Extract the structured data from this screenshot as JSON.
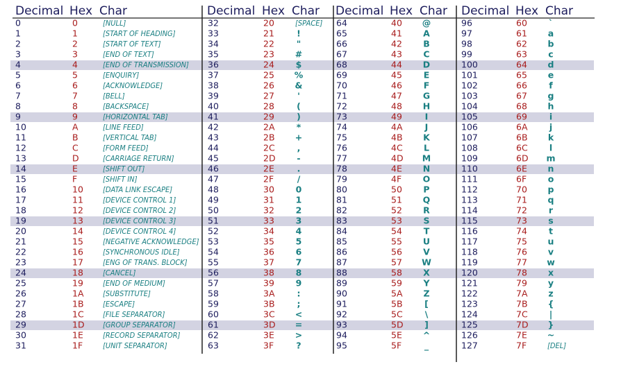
{
  "groups": [
    {
      "headers": [
        "Decimal",
        "Hex",
        "Char"
      ],
      "rows": [
        [
          "0",
          "0",
          "[NULL]"
        ],
        [
          "1",
          "1",
          "[START OF HEADING]"
        ],
        [
          "2",
          "2",
          "[START OF TEXT]"
        ],
        [
          "3",
          "3",
          "[END OF TEXT]"
        ],
        [
          "4",
          "4",
          "[END OF TRANSMISSION]"
        ],
        [
          "5",
          "5",
          "[ENQUIRY]"
        ],
        [
          "6",
          "6",
          "[ACKNOWLEDGE]"
        ],
        [
          "7",
          "7",
          "[BELL]"
        ],
        [
          "8",
          "8",
          "[BACKSPACE]"
        ],
        [
          "9",
          "9",
          "[HORIZONTAL TAB]"
        ],
        [
          "10",
          "A",
          "[LINE FEED]"
        ],
        [
          "11",
          "B",
          "[VERTICAL TAB]"
        ],
        [
          "12",
          "C",
          "[FORM FEED]"
        ],
        [
          "13",
          "D",
          "[CARRIAGE RETURN]"
        ],
        [
          "14",
          "E",
          "[SHIFT OUT]"
        ],
        [
          "15",
          "F",
          "[SHIFT IN]"
        ],
        [
          "16",
          "10",
          "[DATA LINK ESCAPE]"
        ],
        [
          "17",
          "11",
          "[DEVICE CONTROL 1]"
        ],
        [
          "18",
          "12",
          "[DEVICE CONTROL 2]"
        ],
        [
          "19",
          "13",
          "[DEVICE CONTROL 3]"
        ],
        [
          "20",
          "14",
          "[DEVICE CONTROL 4]"
        ],
        [
          "21",
          "15",
          "[NEGATIVE ACKNOWLEDGE]"
        ],
        [
          "22",
          "16",
          "[SYNCHRONOUS IDLE]"
        ],
        [
          "23",
          "17",
          "[ENG OF TRANS. BLOCK]"
        ],
        [
          "24",
          "18",
          "[CANCEL]"
        ],
        [
          "25",
          "19",
          "[END OF MEDIUM]"
        ],
        [
          "26",
          "1A",
          "[SUBSTITUTE]"
        ],
        [
          "27",
          "1B",
          "[ESCAPE]"
        ],
        [
          "28",
          "1C",
          "[FILE SEPARATOR]"
        ],
        [
          "29",
          "1D",
          "[GROUP SEPARATOR]"
        ],
        [
          "30",
          "1E",
          "[RECORD SEPARATOR]"
        ],
        [
          "31",
          "1F",
          "[UNIT SEPARATOR]"
        ]
      ]
    },
    {
      "headers": [
        "Decimal",
        "Hex",
        "Char"
      ],
      "rows": [
        [
          "32",
          "20",
          "[SPACE]"
        ],
        [
          "33",
          "21",
          "!"
        ],
        [
          "34",
          "22",
          "\""
        ],
        [
          "35",
          "23",
          "#"
        ],
        [
          "36",
          "24",
          "$"
        ],
        [
          "37",
          "25",
          "%"
        ],
        [
          "38",
          "26",
          "&"
        ],
        [
          "39",
          "27",
          "'"
        ],
        [
          "40",
          "28",
          "("
        ],
        [
          "41",
          "29",
          ")"
        ],
        [
          "42",
          "2A",
          "*"
        ],
        [
          "43",
          "2B",
          "+"
        ],
        [
          "44",
          "2C",
          ","
        ],
        [
          "45",
          "2D",
          "-"
        ],
        [
          "46",
          "2E",
          "."
        ],
        [
          "47",
          "2F",
          "/"
        ],
        [
          "48",
          "30",
          "0"
        ],
        [
          "49",
          "31",
          "1"
        ],
        [
          "50",
          "32",
          "2"
        ],
        [
          "51",
          "33",
          "3"
        ],
        [
          "52",
          "34",
          "4"
        ],
        [
          "53",
          "35",
          "5"
        ],
        [
          "54",
          "36",
          "6"
        ],
        [
          "55",
          "37",
          "7"
        ],
        [
          "56",
          "38",
          "8"
        ],
        [
          "57",
          "39",
          "9"
        ],
        [
          "58",
          "3A",
          ":"
        ],
        [
          "59",
          "3B",
          ";"
        ],
        [
          "60",
          "3C",
          "<"
        ],
        [
          "61",
          "3D",
          "="
        ],
        [
          "62",
          "3E",
          ">"
        ],
        [
          "63",
          "3F",
          "?"
        ]
      ]
    },
    {
      "headers": [
        "Decimal",
        "Hex",
        "Char"
      ],
      "rows": [
        [
          "64",
          "40",
          "@"
        ],
        [
          "65",
          "41",
          "A"
        ],
        [
          "66",
          "42",
          "B"
        ],
        [
          "67",
          "43",
          "C"
        ],
        [
          "68",
          "44",
          "D"
        ],
        [
          "69",
          "45",
          "E"
        ],
        [
          "70",
          "46",
          "F"
        ],
        [
          "71",
          "47",
          "G"
        ],
        [
          "72",
          "48",
          "H"
        ],
        [
          "73",
          "49",
          "I"
        ],
        [
          "74",
          "4A",
          "J"
        ],
        [
          "75",
          "4B",
          "K"
        ],
        [
          "76",
          "4C",
          "L"
        ],
        [
          "77",
          "4D",
          "M"
        ],
        [
          "78",
          "4E",
          "N"
        ],
        [
          "79",
          "4F",
          "O"
        ],
        [
          "80",
          "50",
          "P"
        ],
        [
          "81",
          "51",
          "Q"
        ],
        [
          "82",
          "52",
          "R"
        ],
        [
          "83",
          "53",
          "S"
        ],
        [
          "84",
          "54",
          "T"
        ],
        [
          "85",
          "55",
          "U"
        ],
        [
          "86",
          "56",
          "V"
        ],
        [
          "87",
          "57",
          "W"
        ],
        [
          "88",
          "58",
          "X"
        ],
        [
          "89",
          "59",
          "Y"
        ],
        [
          "90",
          "5A",
          "Z"
        ],
        [
          "91",
          "5B",
          "["
        ],
        [
          "92",
          "5C",
          "\\"
        ],
        [
          "93",
          "5D",
          "]"
        ],
        [
          "94",
          "5E",
          "^"
        ],
        [
          "95",
          "5F",
          "_"
        ]
      ]
    },
    {
      "headers": [
        "Decimal",
        "Hex",
        "Char"
      ],
      "rows": [
        [
          "96",
          "60",
          "`"
        ],
        [
          "97",
          "61",
          "a"
        ],
        [
          "98",
          "62",
          "b"
        ],
        [
          "99",
          "63",
          "c"
        ],
        [
          "100",
          "64",
          "d"
        ],
        [
          "101",
          "65",
          "e"
        ],
        [
          "102",
          "66",
          "f"
        ],
        [
          "103",
          "67",
          "g"
        ],
        [
          "104",
          "68",
          "h"
        ],
        [
          "105",
          "69",
          "i"
        ],
        [
          "106",
          "6A",
          "j"
        ],
        [
          "107",
          "6B",
          "k"
        ],
        [
          "108",
          "6C",
          "l"
        ],
        [
          "109",
          "6D",
          "m"
        ],
        [
          "110",
          "6E",
          "n"
        ],
        [
          "111",
          "6F",
          "o"
        ],
        [
          "112",
          "70",
          "p"
        ],
        [
          "113",
          "71",
          "q"
        ],
        [
          "114",
          "72",
          "r"
        ],
        [
          "115",
          "73",
          "s"
        ],
        [
          "116",
          "74",
          "t"
        ],
        [
          "117",
          "75",
          "u"
        ],
        [
          "118",
          "76",
          "v"
        ],
        [
          "119",
          "77",
          "w"
        ],
        [
          "120",
          "78",
          "x"
        ],
        [
          "121",
          "79",
          "y"
        ],
        [
          "122",
          "7A",
          "z"
        ],
        [
          "123",
          "7B",
          "{"
        ],
        [
          "124",
          "7C",
          "|"
        ],
        [
          "125",
          "7D",
          "}"
        ],
        [
          "126",
          "7E",
          "~"
        ],
        [
          "127",
          "7F",
          "[DEL]"
        ]
      ]
    }
  ]
}
